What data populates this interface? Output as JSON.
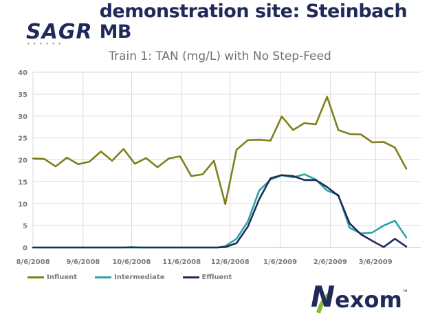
{
  "header": {
    "logo_text": "SAGR",
    "title": "demonstration site: Steinbach MB"
  },
  "footer": {
    "logo_text": "Nexom",
    "logo_n": "N",
    "logo_rest": "exom",
    "trademark": "™"
  },
  "colors": {
    "influent": "#7f7f1a",
    "intermediate": "#2aa3a3",
    "effluent": "#1f2a5a",
    "grid": "#d9d9d9"
  },
  "chart_data": {
    "type": "line",
    "title": "Train 1:  TAN (mg/L) with No Step-Feed",
    "xlabel": "",
    "ylabel": "",
    "ylim": [
      0,
      40
    ],
    "yticks": [
      0,
      5,
      10,
      15,
      20,
      25,
      30,
      35,
      40
    ],
    "x_tick_labels": [
      "8/6/2008",
      "9/6/2008",
      "10/6/2008",
      "11/6/2008",
      "12/6/2008",
      "1/6/2009",
      "2/6/2009",
      "3/6/2009"
    ],
    "grid": true,
    "legend_position": "bottom-left",
    "series": [
      {
        "name": "Influent",
        "color": "#7f7f1a",
        "points": [
          [
            "2008-08-06",
            20.3
          ],
          [
            "2008-08-13",
            20.2
          ],
          [
            "2008-08-20",
            18.5
          ],
          [
            "2008-08-27",
            20.5
          ],
          [
            "2008-09-03",
            19.0
          ],
          [
            "2008-09-10",
            19.6
          ],
          [
            "2008-09-17",
            21.9
          ],
          [
            "2008-09-24",
            19.8
          ],
          [
            "2008-10-01",
            22.5
          ],
          [
            "2008-10-08",
            19.1
          ],
          [
            "2008-10-15",
            20.4
          ],
          [
            "2008-10-22",
            18.3
          ],
          [
            "2008-10-29",
            20.3
          ],
          [
            "2008-11-05",
            20.8
          ],
          [
            "2008-11-12",
            16.3
          ],
          [
            "2008-11-19",
            16.7
          ],
          [
            "2008-11-26",
            19.8
          ],
          [
            "2008-12-03",
            9.9
          ],
          [
            "2008-12-10",
            22.3
          ],
          [
            "2008-12-17",
            24.5
          ],
          [
            "2008-12-24",
            24.6
          ],
          [
            "2008-12-31",
            24.4
          ],
          [
            "2009-01-07",
            29.9
          ],
          [
            "2009-01-14",
            26.8
          ],
          [
            "2009-01-21",
            28.4
          ],
          [
            "2009-01-28",
            28.1
          ],
          [
            "2009-02-04",
            34.4
          ],
          [
            "2009-02-11",
            26.8
          ],
          [
            "2009-02-18",
            25.9
          ],
          [
            "2009-02-25",
            25.8
          ],
          [
            "2009-03-04",
            24.0
          ],
          [
            "2009-03-11",
            24.1
          ],
          [
            "2009-03-18",
            22.8
          ],
          [
            "2009-03-25",
            18.0
          ]
        ]
      },
      {
        "name": "Intermediate",
        "color": "#2aa3a3",
        "points": [
          [
            "2008-08-06",
            0
          ],
          [
            "2008-09-01",
            0
          ],
          [
            "2008-10-01",
            0
          ],
          [
            "2008-10-06",
            0.1
          ],
          [
            "2008-10-12",
            0
          ],
          [
            "2008-11-01",
            0
          ],
          [
            "2008-11-28",
            0
          ],
          [
            "2008-12-03",
            0.3
          ],
          [
            "2008-12-10",
            2.0
          ],
          [
            "2008-12-17",
            6.0
          ],
          [
            "2008-12-24",
            13.0
          ],
          [
            "2008-12-31",
            15.5
          ],
          [
            "2009-01-07",
            16.5
          ],
          [
            "2009-01-14",
            16.0
          ],
          [
            "2009-01-21",
            16.7
          ],
          [
            "2009-01-28",
            15.5
          ],
          [
            "2009-02-04",
            13.0
          ],
          [
            "2009-02-11",
            12.0
          ],
          [
            "2009-02-18",
            4.5
          ],
          [
            "2009-02-25",
            3.2
          ],
          [
            "2009-03-04",
            3.4
          ],
          [
            "2009-03-11",
            5.0
          ],
          [
            "2009-03-18",
            6.1
          ],
          [
            "2009-03-25",
            2.3
          ]
        ]
      },
      {
        "name": "Effluent",
        "color": "#1f2a5a",
        "points": [
          [
            "2008-08-06",
            0
          ],
          [
            "2008-09-01",
            0
          ],
          [
            "2008-10-01",
            0
          ],
          [
            "2008-11-01",
            0
          ],
          [
            "2008-11-28",
            0
          ],
          [
            "2008-12-03",
            0.1
          ],
          [
            "2008-12-10",
            1.0
          ],
          [
            "2008-12-17",
            4.8
          ],
          [
            "2008-12-24",
            11.0
          ],
          [
            "2008-12-31",
            15.8
          ],
          [
            "2009-01-07",
            16.5
          ],
          [
            "2009-01-14",
            16.3
          ],
          [
            "2009-01-21",
            15.4
          ],
          [
            "2009-01-28",
            15.4
          ],
          [
            "2009-02-04",
            13.8
          ],
          [
            "2009-02-11",
            11.8
          ],
          [
            "2009-02-18",
            5.5
          ],
          [
            "2009-02-25",
            3.0
          ],
          [
            "2009-03-04",
            1.5
          ],
          [
            "2009-03-11",
            0.1
          ],
          [
            "2009-03-18",
            2.0
          ],
          [
            "2009-03-25",
            0.2
          ]
        ]
      }
    ]
  }
}
